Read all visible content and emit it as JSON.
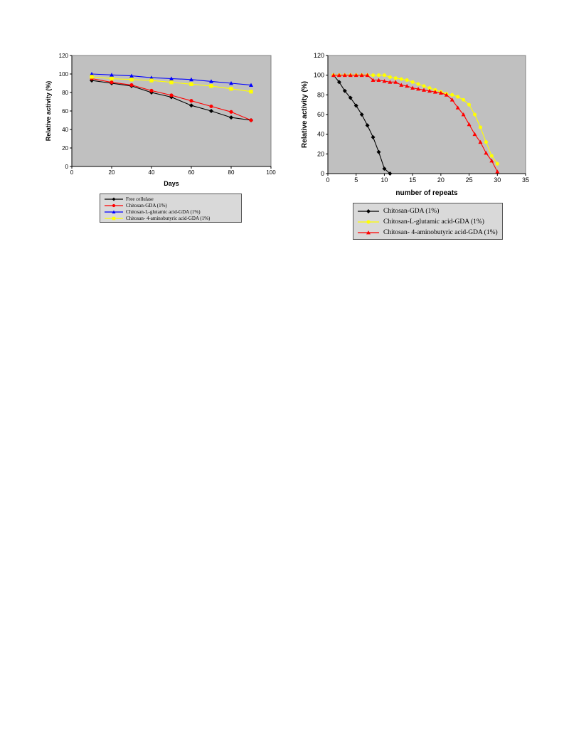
{
  "chart_data": [
    {
      "type": "line",
      "xlabel": "Days",
      "ylabel": "Relative activity (%)",
      "xlim": [
        0,
        100
      ],
      "ylim": [
        0,
        120
      ],
      "xticks": [
        0,
        20,
        40,
        60,
        80,
        100
      ],
      "yticks": [
        0,
        20,
        40,
        60,
        80,
        100,
        120
      ],
      "xtick_labels": [
        "0",
        "20",
        "40",
        "60",
        "80",
        "100"
      ],
      "ytick_labels": [
        "0",
        "20",
        "40",
        "60",
        "80",
        "100",
        "120"
      ],
      "grid": false,
      "legend_position": "bottom",
      "series": [
        {
          "name": "Free cellulase",
          "color": "#000000",
          "marker": "diamond",
          "x": [
            10,
            20,
            30,
            40,
            50,
            60,
            70,
            80,
            90
          ],
          "y": [
            93,
            90,
            87,
            80,
            75,
            66,
            60,
            53,
            50
          ]
        },
        {
          "name": "Chitosan-GDA (1%)",
          "color": "#ff0000",
          "marker": "circle",
          "x": [
            10,
            20,
            30,
            40,
            50,
            60,
            70,
            80,
            90
          ],
          "y": [
            95,
            91,
            88,
            82,
            77,
            71,
            65,
            59,
            50
          ]
        },
        {
          "name": "Chitosan-L-glutamic acid-GDA (1%)",
          "color": "#0000ff",
          "marker": "triangle",
          "x": [
            10,
            20,
            30,
            40,
            50,
            60,
            70,
            80,
            90
          ],
          "y": [
            100,
            99,
            98,
            96,
            95,
            94,
            92,
            90,
            88
          ]
        },
        {
          "name": "Chitosan- 4-aminobutyric acid-GDA (1%)",
          "color": "#ffff00",
          "marker": "square",
          "x": [
            10,
            20,
            30,
            40,
            50,
            60,
            70,
            80,
            90
          ],
          "y": [
            97,
            95,
            94,
            93,
            91,
            89,
            87,
            84,
            81
          ]
        }
      ]
    },
    {
      "type": "line",
      "xlabel": "number of repeats",
      "ylabel": "Relative activity (%)",
      "xlim": [
        0,
        35
      ],
      "ylim": [
        0,
        120
      ],
      "xticks": [
        0,
        5,
        10,
        15,
        20,
        25,
        30,
        35
      ],
      "yticks": [
        0,
        20,
        40,
        60,
        80,
        100,
        120
      ],
      "xtick_labels": [
        "0",
        "5",
        "10",
        "15",
        "20",
        "25",
        "30",
        "35"
      ],
      "ytick_labels": [
        "0",
        "20",
        "40",
        "60",
        "80",
        "100",
        "120"
      ],
      "grid": false,
      "legend_position": "bottom",
      "series": [
        {
          "name": "Chitosan-GDA (1%)",
          "color": "#000000",
          "marker": "diamond",
          "x": [
            1,
            2,
            3,
            4,
            5,
            6,
            7,
            8,
            9,
            10,
            11
          ],
          "y": [
            100,
            93,
            84,
            77,
            69,
            60,
            49,
            37,
            22,
            5,
            0
          ]
        },
        {
          "name": "Chitosan-L-glutamic acid-GDA (1%)",
          "color": "#ffff00",
          "marker": "circle",
          "x": [
            1,
            2,
            3,
            4,
            5,
            6,
            7,
            8,
            9,
            10,
            11,
            12,
            13,
            14,
            15,
            16,
            17,
            18,
            19,
            20,
            21,
            22,
            23,
            24,
            25,
            26,
            27,
            28,
            29,
            30
          ],
          "y": [
            100,
            100,
            100,
            100,
            100,
            100,
            100,
            100,
            100,
            100,
            98,
            97,
            96,
            95,
            93,
            91,
            89,
            87,
            85,
            83,
            81,
            80,
            78,
            75,
            70,
            60,
            47,
            32,
            18,
            10
          ]
        },
        {
          "name": "Chitosan- 4-aminobutyric acid-GDA (1%)",
          "color": "#ff0000",
          "marker": "triangle",
          "x": [
            1,
            2,
            3,
            4,
            5,
            6,
            7,
            8,
            9,
            10,
            11,
            12,
            13,
            14,
            15,
            16,
            17,
            18,
            19,
            20,
            21,
            22,
            23,
            24,
            25,
            26,
            27,
            28,
            29,
            30
          ],
          "y": [
            100,
            100,
            100,
            100,
            100,
            100,
            100,
            95,
            95,
            94,
            93,
            93,
            90,
            89,
            87,
            86,
            85,
            84,
            83,
            82,
            80,
            75,
            67,
            60,
            50,
            40,
            32,
            21,
            13,
            2
          ]
        }
      ]
    }
  ]
}
